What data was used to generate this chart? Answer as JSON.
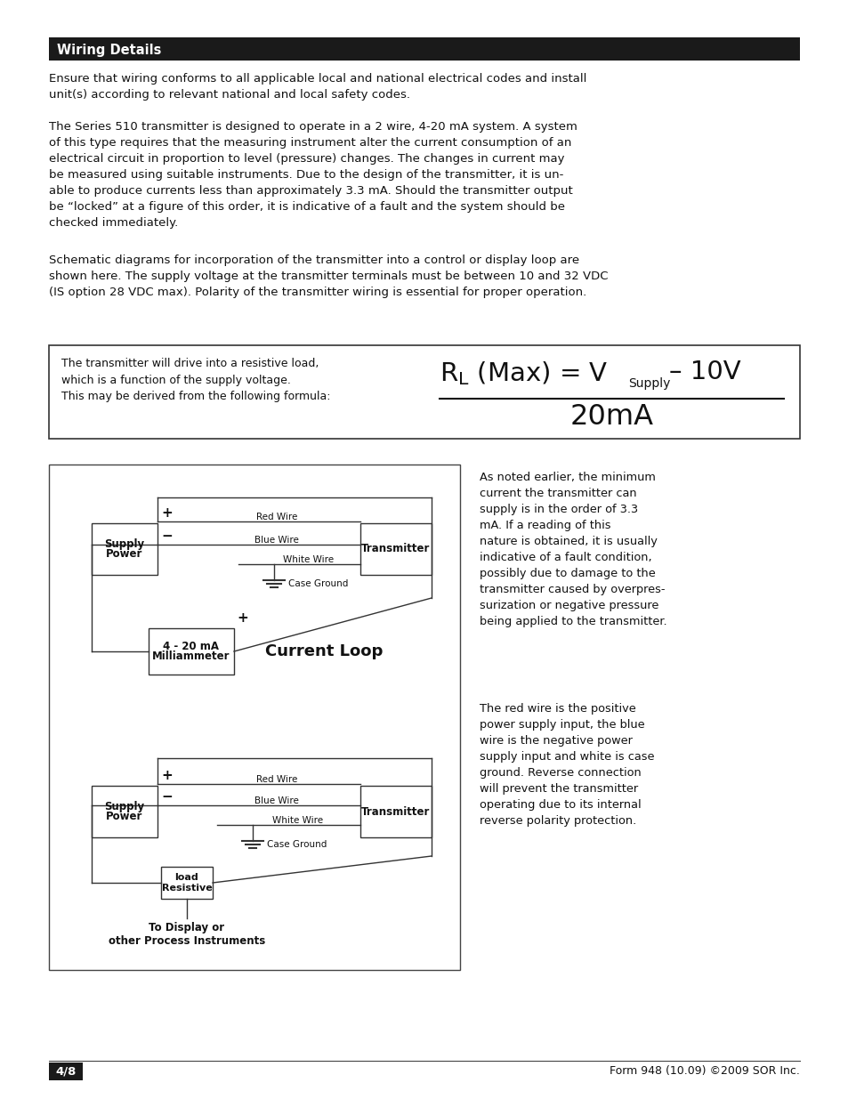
{
  "title_bar_text": "Wiring Details",
  "title_bar_bg": "#1a1a1a",
  "title_bar_fg": "#ffffff",
  "page_bg": "#ffffff",
  "body_text_color": "#111111",
  "para1": "Ensure that wiring conforms to all applicable local and national electrical codes and install\nunit(s) according to relevant national and local safety codes.",
  "para2": "The Series 510 transmitter is designed to operate in a 2 wire, 4-20 mA system. A system\nof this type requires that the measuring instrument alter the current consumption of an\nelectrical circuit in proportion to level (pressure) changes. The changes in current may\nbe measured using suitable instruments. Due to the design of the transmitter, it is un-\nable to produce currents less than approximately 3.3 mA. Should the transmitter output\nbe “locked” at a figure of this order, it is indicative of a fault and the system should be\nchecked immediately.",
  "para3": "Schematic diagrams for incorporation of the transmitter into a control or display loop are\nshown here. The supply voltage at the transmitter terminals must be between 10 and 32 VDC\n(IS option 28 VDC max). Polarity of the transmitter wiring is essential for proper operation.",
  "formula_left_text": "The transmitter will drive into a resistive load,\nwhich is a function of the supply voltage.\nThis may be derived from the following formula:",
  "right_col_para1": "As noted earlier, the minimum\ncurrent the transmitter can\nsupply is in the order of 3.3\nmA. If a reading of this\nnature is obtained, it is usually\nindicative of a fault condition,\npossibly due to damage to the\ntransmitter caused by overpres-\nsurization or negative pressure\nbeing applied to the transmitter.",
  "right_col_para2": "The red wire is the positive\npower supply input, the blue\nwire is the negative power\nsupply input and white is case\nground. Reverse connection\nwill prevent the transmitter\noperating due to its internal\nreverse polarity protection.",
  "current_loop_label": "Current Loop",
  "footer_page": "4/8",
  "footer_right": "Form 948 (10.09) ©2009 SOR Inc.",
  "font_size_body": 9.5,
  "font_size_title": 10.5
}
